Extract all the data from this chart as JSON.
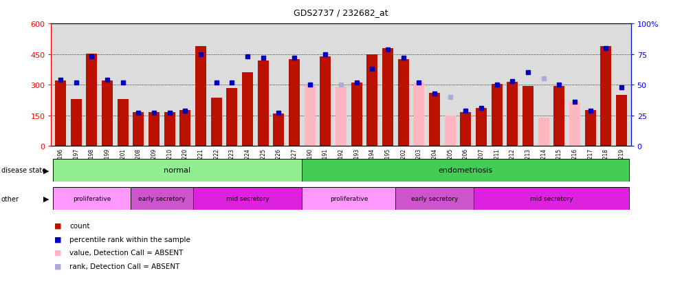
{
  "title": "GDS2737 / 232682_at",
  "samples": [
    "GSM150196",
    "GSM150197",
    "GSM150198",
    "GSM150199",
    "GSM150201",
    "GSM150208",
    "GSM150209",
    "GSM150210",
    "GSM150220",
    "GSM150221",
    "GSM150222",
    "GSM150223",
    "GSM150224",
    "GSM150225",
    "GSM150226",
    "GSM150227",
    "GSM150190",
    "GSM150191",
    "GSM150192",
    "GSM150193",
    "GSM150194",
    "GSM150195",
    "GSM150202",
    "GSM150203",
    "GSM150204",
    "GSM150205",
    "GSM150206",
    "GSM150207",
    "GSM150211",
    "GSM150212",
    "GSM150213",
    "GSM150214",
    "GSM150215",
    "GSM150216",
    "GSM150217",
    "GSM150218",
    "GSM150219"
  ],
  "count_values": [
    320,
    230,
    452,
    320,
    230,
    165,
    165,
    165,
    175,
    490,
    235,
    285,
    360,
    420,
    160,
    425,
    295,
    440,
    290,
    310,
    448,
    480,
    425,
    310,
    260,
    150,
    165,
    185,
    305,
    315,
    295,
    140,
    295,
    215,
    175,
    490,
    250
  ],
  "count_absent": [
    false,
    false,
    false,
    false,
    false,
    false,
    false,
    false,
    false,
    false,
    false,
    false,
    false,
    false,
    false,
    false,
    true,
    false,
    true,
    false,
    false,
    false,
    false,
    true,
    false,
    true,
    false,
    false,
    false,
    false,
    false,
    true,
    false,
    true,
    false,
    false,
    false
  ],
  "rank_values": [
    54,
    52,
    73,
    54,
    52,
    27,
    27,
    27,
    29,
    75,
    52,
    52,
    73,
    72,
    27,
    72,
    50,
    75,
    50,
    52,
    63,
    79,
    72,
    52,
    43,
    40,
    29,
    31,
    50,
    53,
    60,
    55,
    50,
    36,
    29,
    80,
    48
  ],
  "rank_absent": [
    false,
    false,
    false,
    false,
    false,
    false,
    false,
    false,
    false,
    false,
    false,
    false,
    false,
    false,
    false,
    false,
    false,
    false,
    true,
    false,
    false,
    false,
    false,
    false,
    false,
    true,
    false,
    false,
    false,
    false,
    false,
    true,
    false,
    false,
    false,
    false,
    false
  ],
  "disease_state_groups": [
    {
      "label": "normal",
      "start": 0,
      "end": 15,
      "color": "#90EE90"
    },
    {
      "label": "endometriosis",
      "start": 16,
      "end": 36,
      "color": "#44CC55"
    }
  ],
  "other_groups": [
    {
      "label": "proliferative",
      "start": 0,
      "end": 4,
      "color": "#FF99FF"
    },
    {
      "label": "early secretory",
      "start": 5,
      "end": 8,
      "color": "#CC55CC"
    },
    {
      "label": "mid secretory",
      "start": 9,
      "end": 15,
      "color": "#DD22DD"
    },
    {
      "label": "proliferative",
      "start": 16,
      "end": 21,
      "color": "#FF99FF"
    },
    {
      "label": "early secretory",
      "start": 22,
      "end": 26,
      "color": "#CC55CC"
    },
    {
      "label": "mid secretory",
      "start": 27,
      "end": 36,
      "color": "#DD22DD"
    }
  ],
  "bar_color_present": "#BB1100",
  "bar_color_absent": "#FFB6C1",
  "dot_color_present": "#0000BB",
  "dot_color_absent": "#AAAADD",
  "ylim_left": [
    0,
    600
  ],
  "ylim_right": [
    0,
    100
  ],
  "yticks_left": [
    0,
    150,
    300,
    450,
    600
  ],
  "yticks_right": [
    0,
    25,
    50,
    75,
    100
  ],
  "bg_color": "#DCDCDC"
}
